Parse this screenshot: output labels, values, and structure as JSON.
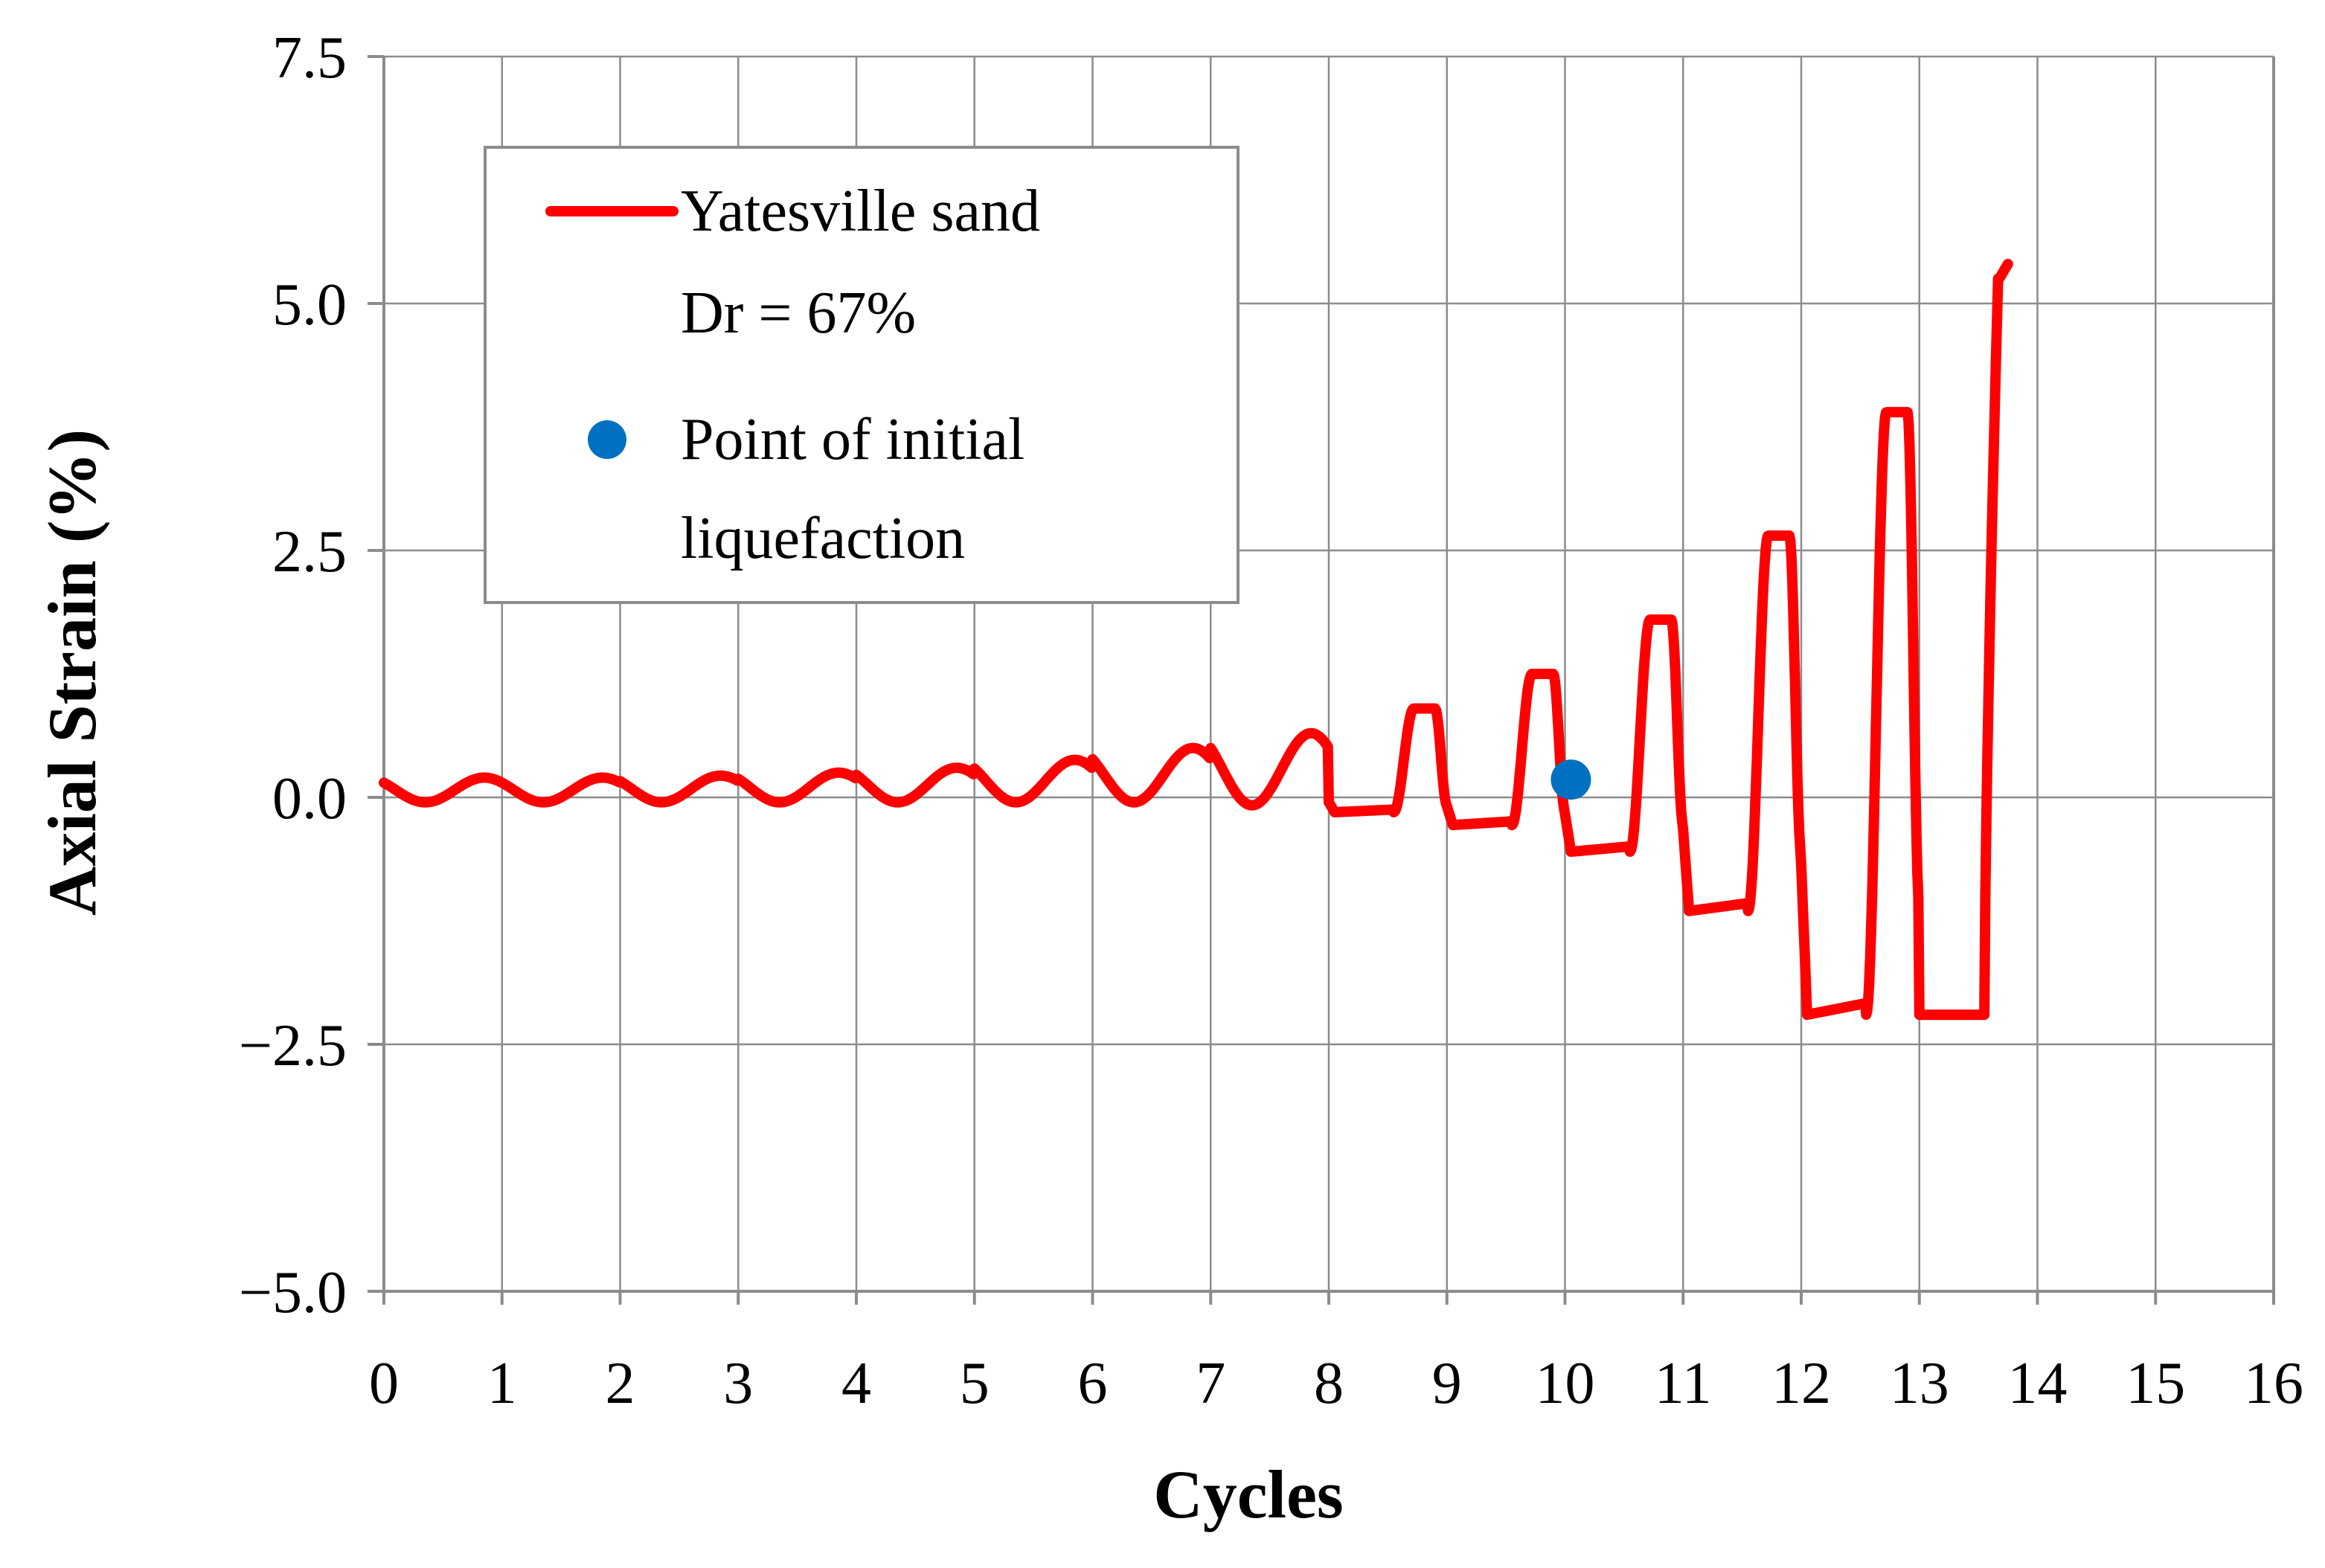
{
  "chart_data": {
    "type": "line",
    "title": "",
    "xlabel": "Cycles",
    "ylabel": "Axial Strain (%)",
    "xlim": [
      0,
      16
    ],
    "ylim": [
      -5.0,
      7.5
    ],
    "x_ticks": [
      "0",
      "1",
      "2",
      "3",
      "4",
      "5",
      "6",
      "7",
      "8",
      "9",
      "10",
      "11",
      "12",
      "13",
      "14",
      "15",
      "16"
    ],
    "y_ticks": [
      "−5.0",
      "−2.5",
      "0.0",
      "2.5",
      "5.0",
      "7.5"
    ],
    "y_tick_values": [
      -5.0,
      -2.5,
      0.0,
      2.5,
      5.0,
      7.5
    ],
    "grid": true,
    "legend_position": "top-left",
    "legend": {
      "line_label_1": "Yatesville sand",
      "line_label_2": "Dr = 67%",
      "point_label_1": "Point of initial",
      "point_label_2": "liquefaction"
    },
    "series": [
      {
        "name": "Yatesville sand Dr = 67%",
        "color": "#ff0000",
        "cycle_amplitudes": [
          {
            "cycle": 0,
            "max": 0.2,
            "min": -0.05
          },
          {
            "cycle": 1,
            "max": 0.2,
            "min": -0.05
          },
          {
            "cycle": 2,
            "max": 0.22,
            "min": -0.05
          },
          {
            "cycle": 3,
            "max": 0.25,
            "min": -0.05
          },
          {
            "cycle": 4,
            "max": 0.3,
            "min": -0.05
          },
          {
            "cycle": 5,
            "max": 0.38,
            "min": -0.05
          },
          {
            "cycle": 6,
            "max": 0.5,
            "min": -0.05
          },
          {
            "cycle": 7,
            "max": 0.65,
            "min": -0.08
          },
          {
            "cycle": 8,
            "max": 0.9,
            "min": -0.15
          },
          {
            "cycle": 9,
            "max": 1.25,
            "min": -0.28
          },
          {
            "cycle": 10,
            "max": 1.8,
            "min": -0.55
          },
          {
            "cycle": 11,
            "max": 2.65,
            "min": -1.15
          },
          {
            "cycle": 12,
            "max": 3.9,
            "min": -2.2
          },
          {
            "cycle": 13,
            "max": 5.4,
            "min": null
          }
        ],
        "end_x": 13.75
      },
      {
        "name": "Point of initial liquefaction",
        "color": "#0070c0",
        "type": "scatter",
        "points": [
          {
            "x": 10.05,
            "y": 0.18
          }
        ]
      }
    ]
  }
}
